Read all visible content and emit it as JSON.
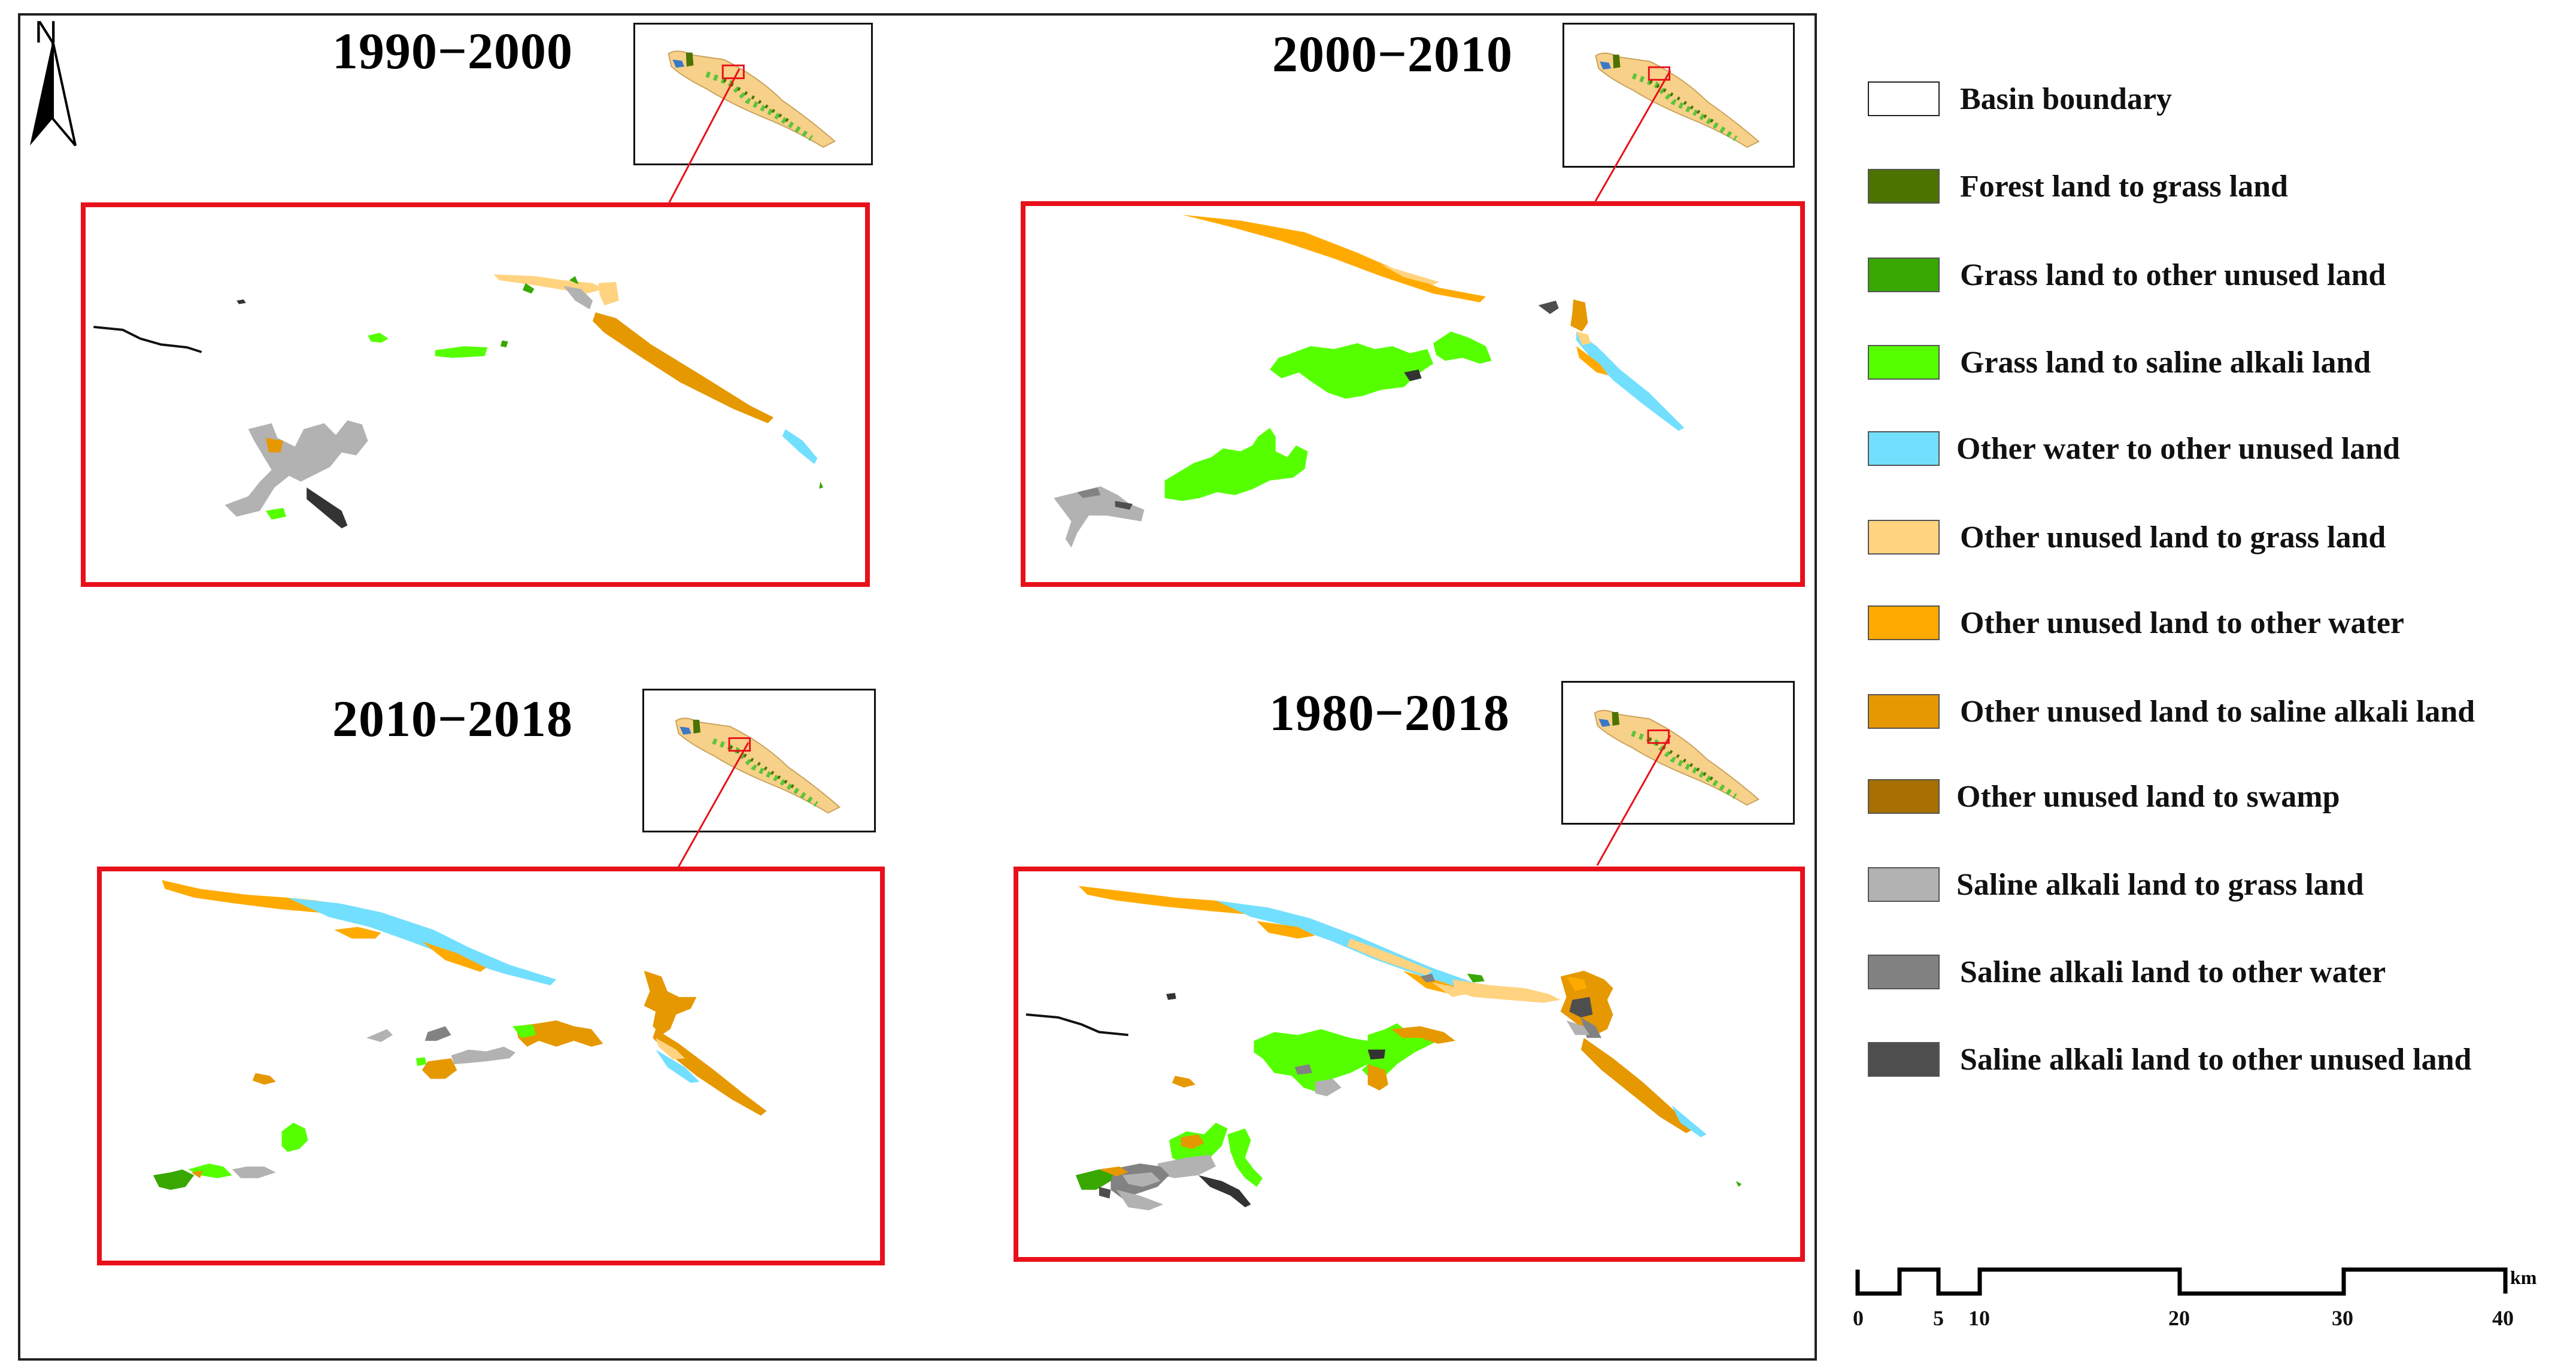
{
  "map": {
    "north_label": "N",
    "periods": [
      {
        "id": "p1",
        "title": "1990−2000"
      },
      {
        "id": "p2",
        "title": "2000−2010"
      },
      {
        "id": "p3",
        "title": "2010−2018"
      },
      {
        "id": "p4",
        "title": "1980−2018"
      }
    ]
  },
  "legend": {
    "items": [
      {
        "label": "Basin boundary",
        "color": "#ffffff"
      },
      {
        "label": "Forest land to grass land",
        "color": "#4c7300"
      },
      {
        "label": "Grass land to other unused land",
        "color": "#38a800"
      },
      {
        "label": "Grass land to saline alkali land",
        "color": "#55ff00"
      },
      {
        "label": "Other water to other unused land",
        "color": "#73dfff"
      },
      {
        "label": "Other unused land to grass land",
        "color": "#ffd37f"
      },
      {
        "label": "Other unused land to other water",
        "color": "#ffaa00"
      },
      {
        "label": "Other unused land to saline alkali land",
        "color": "#e69800"
      },
      {
        "label": "Other unused land to swamp",
        "color": "#a87000"
      },
      {
        "label": "Saline alkali land to grass land",
        "color": "#b2b2b2"
      },
      {
        "label": "Saline alkali land to other water",
        "color": "#828282"
      },
      {
        "label": "Saline alkali land to other unused land",
        "color": "#4e4e4e"
      }
    ]
  },
  "scale": {
    "unit": "km",
    "ticks": [
      "0",
      "5",
      "10",
      "20",
      "30",
      "40"
    ]
  },
  "colors": {
    "panel_border": "#e8101a",
    "connector": "#e8101a"
  }
}
